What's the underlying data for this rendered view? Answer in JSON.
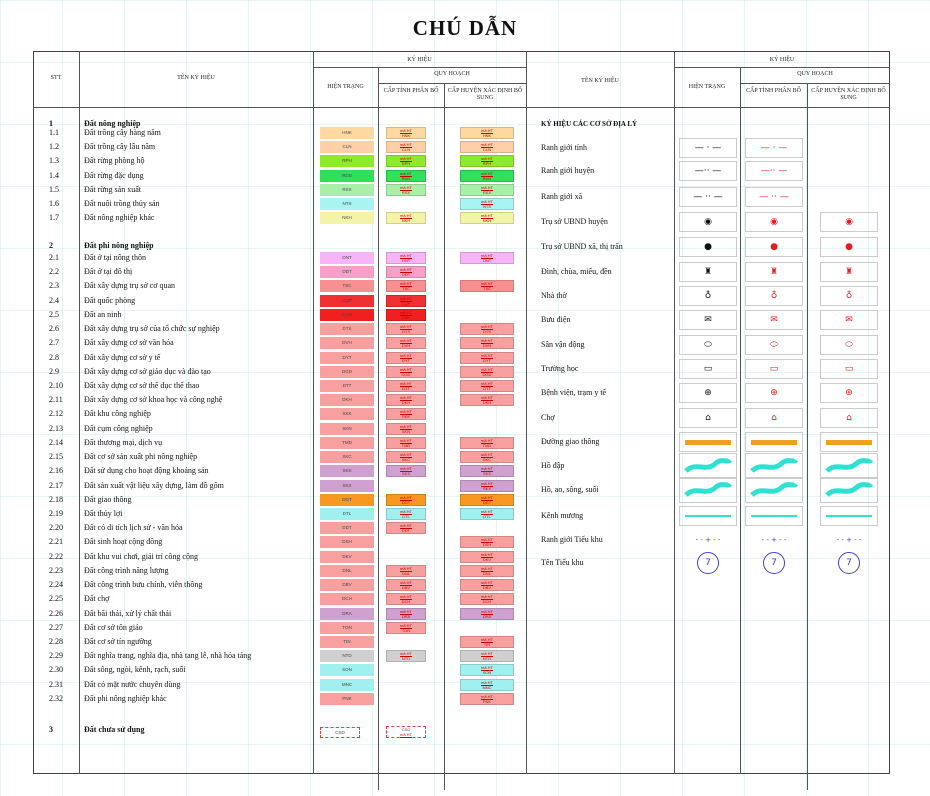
{
  "title": "CHÚ DẪN",
  "header": {
    "stt": "STT",
    "ten_ky_hieu": "TÊN KÝ HIỆU",
    "ky_hieu": "KÝ HIỆU",
    "hien_trang": "HIỆN TRẠNG",
    "quy_hoach": "QUY HOẠCH",
    "cap_tinh": "CẤP TỈNH PHÂN BỔ",
    "cap_huyen": "CẤP HUYỆN XÁC ĐỊNH BỔ SUNG"
  },
  "groups": [
    {
      "stt": "1",
      "name": "Đất nông nghiệp"
    },
    {
      "stt": "2",
      "name": "Đất phi nông nghiệp"
    },
    {
      "stt": "3",
      "name": "Đất chưa sử dụng"
    }
  ],
  "rows": [
    {
      "stt": "1.1",
      "name": "Đất trồng cây hàng năm",
      "code": "HNK",
      "color": "#ffd9a0",
      "tinh": true,
      "huyen": true
    },
    {
      "stt": "1.2",
      "name": "Đất trồng cây lâu năm",
      "code": "CLN",
      "color": "#ffd0a8",
      "tinh": true,
      "huyen": true
    },
    {
      "stt": "1.3",
      "name": "Đất rừng phòng hộ",
      "code": "RPH",
      "color": "#8eea2c",
      "tinh": true,
      "huyen": true
    },
    {
      "stt": "1.4",
      "name": "Đất rừng đặc dụng",
      "code": "RDD",
      "color": "#2ee05a",
      "tinh": true,
      "huyen": true
    },
    {
      "stt": "1.5",
      "name": "Đất rừng sản xuất",
      "code": "RSX",
      "color": "#a8f0a8",
      "tinh": true,
      "huyen": true
    },
    {
      "stt": "1.6",
      "name": "Đất nuôi trồng thủy sản",
      "code": "NTS",
      "color": "#a8f4f0",
      "tinh": false,
      "huyen": true
    },
    {
      "stt": "1.7",
      "name": "Đất nông nghiệp khác",
      "code": "NKH",
      "color": "#f4f4a8",
      "tinh": true,
      "huyen": true
    },
    {
      "stt": "2.1",
      "name": "Đất ở tại nông thôn",
      "code": "ONT",
      "color": "#f8b4f8",
      "tinh": true,
      "huyen": true
    },
    {
      "stt": "2.2",
      "name": "Đất ở tại đô thị",
      "code": "ODT",
      "color": "#f8a0c8",
      "tinh": true,
      "huyen": false
    },
    {
      "stt": "2.3",
      "name": "Đất xây dựng trụ sở cơ quan",
      "code": "TSC",
      "color": "#f89090",
      "tinh": true,
      "huyen": true
    },
    {
      "stt": "2.4",
      "name": "Đất quốc phòng",
      "code": "CQP",
      "color": "#f03030",
      "tinh": true,
      "huyen": false
    },
    {
      "stt": "2.5",
      "name": "Đất an ninh",
      "code": "CAN",
      "color": "#f02020",
      "tinh": true,
      "huyen": false
    },
    {
      "stt": "2.6",
      "name": "Đất xây dựng trụ sở của tổ chức sự nghiệp",
      "code": "DTS",
      "color": "#f8a0a0",
      "tinh": true,
      "huyen": true
    },
    {
      "stt": "2.7",
      "name": "Đất xây dựng cơ sở văn hóa",
      "code": "DVH",
      "color": "#f8a0a0",
      "tinh": true,
      "huyen": true
    },
    {
      "stt": "2.8",
      "name": "Đất xây dựng cơ sở y tế",
      "code": "DYT",
      "color": "#f8a0a0",
      "tinh": true,
      "huyen": true
    },
    {
      "stt": "2.9",
      "name": "Đất xây dựng cơ sở giáo dục và đào tạo",
      "code": "DGD",
      "color": "#f8a0a0",
      "tinh": true,
      "huyen": true
    },
    {
      "stt": "2.10",
      "name": "Đất xây dựng cơ sở thể dục thể thao",
      "code": "DTT",
      "color": "#f8a0a0",
      "tinh": true,
      "huyen": true
    },
    {
      "stt": "2.11",
      "name": "Đất xây dựng cơ sở khoa học và công nghệ",
      "code": "DKH",
      "color": "#f8a0a0",
      "tinh": true,
      "huyen": true
    },
    {
      "stt": "2.12",
      "name": "Đất khu công nghiệp",
      "code": "SKK",
      "color": "#f8a0a0",
      "tinh": true,
      "huyen": false
    },
    {
      "stt": "2.13",
      "name": "Đất cụm công nghiệp",
      "code": "SKN",
      "color": "#f8a0a0",
      "tinh": true,
      "huyen": false
    },
    {
      "stt": "2.14",
      "name": "Đất thương mại, dịch vụ",
      "code": "TMD",
      "color": "#f8a0a0",
      "tinh": true,
      "huyen": true
    },
    {
      "stt": "2.15",
      "name": "Đất cơ sở sản xuất phi nông nghiệp",
      "code": "SKC",
      "color": "#f8a0a0",
      "tinh": true,
      "huyen": true
    },
    {
      "stt": "2.16",
      "name": "Đất sử dụng cho hoạt động khoáng sản",
      "code": "SKS",
      "color": "#d0a0d0",
      "tinh": true,
      "huyen": true
    },
    {
      "stt": "2.17",
      "name": "Đất sản xuất vật liệu xây dựng, làm đồ gốm",
      "code": "SKX",
      "color": "#d0a0d0",
      "tinh": false,
      "huyen": true
    },
    {
      "stt": "2.18",
      "name": "Đất giao thông",
      "code": "DGT",
      "color": "#f89820",
      "tinh": true,
      "huyen": true
    },
    {
      "stt": "2.19",
      "name": "Đất thủy lợi",
      "code": "DTL",
      "color": "#a0f0f0",
      "tinh": true,
      "huyen": true
    },
    {
      "stt": "2.20",
      "name": "Đất có di tích lịch sử - văn hóa",
      "code": "DDT",
      "color": "#f8a0a0",
      "tinh": true,
      "huyen": false
    },
    {
      "stt": "2.21",
      "name": "Đất sinh hoạt cộng đồng",
      "code": "DSH",
      "color": "#f8a0a0",
      "tinh": false,
      "huyen": true
    },
    {
      "stt": "2.22",
      "name": "Đất khu vui chơi, giải trí công cộng",
      "code": "DKV",
      "color": "#f8a0a0",
      "tinh": false,
      "huyen": true
    },
    {
      "stt": "2.23",
      "name": "Đất công trình năng lượng",
      "code": "DNL",
      "color": "#f8a0a0",
      "tinh": true,
      "huyen": true
    },
    {
      "stt": "2.24",
      "name": "Đất công trình bưu chính, viễn thông",
      "code": "DBV",
      "color": "#f8a0a0",
      "tinh": true,
      "huyen": true
    },
    {
      "stt": "2.25",
      "name": "Đất chợ",
      "code": "DCH",
      "color": "#f8a0a0",
      "tinh": true,
      "huyen": true
    },
    {
      "stt": "2.26",
      "name": "Đất bãi thải, xử lý chất thải",
      "code": "DRA",
      "color": "#d0a0d0",
      "tinh": true,
      "huyen": true
    },
    {
      "stt": "2.27",
      "name": "Đất cơ sở tôn giáo",
      "code": "TON",
      "color": "#f8a0a0",
      "tinh": true,
      "huyen": false
    },
    {
      "stt": "2.28",
      "name": "Đất cơ sở tín ngưỡng",
      "code": "TIN",
      "color": "#f8a0a0",
      "tinh": false,
      "huyen": true
    },
    {
      "stt": "2.29",
      "name": "Đất nghĩa trang, nghĩa địa, nhà tang lễ, nhà hỏa táng",
      "code": "NTD",
      "color": "#d0d0d0",
      "tinh": true,
      "huyen": true
    },
    {
      "stt": "2.30",
      "name": "Đất sông, ngòi, kênh, rạch, suối",
      "code": "SON",
      "color": "#a0f0f0",
      "tinh": false,
      "huyen": true
    },
    {
      "stt": "2.31",
      "name": "Đất có mặt nước chuyên dùng",
      "code": "MNC",
      "color": "#a0f0f0",
      "tinh": false,
      "huyen": true
    },
    {
      "stt": "2.32",
      "name": "Đất phi nông nghiệp khác",
      "code": "PNK",
      "color": "#f8a0a0",
      "tinh": false,
      "huyen": true
    }
  ],
  "unused": {
    "code": "CSD",
    "sub": "mã HT"
  },
  "swatch_label": "mã HT",
  "symbols_header": "KÝ HIỆU CÁC CƠ SỞ ĐỊA LÝ",
  "symbols": [
    {
      "name": "Ranh giới tỉnh",
      "icon": "province-boundary-icon",
      "glyph": "— · —",
      "huyen": false
    },
    {
      "name": "Ranh giới huyện",
      "icon": "district-boundary-icon",
      "glyph": "—·· —",
      "huyen": false
    },
    {
      "name": "Ranh giới xã",
      "icon": "commune-boundary-icon",
      "glyph": "— ·· —",
      "huyen": false
    },
    {
      "name": "Trụ sở UBND huyện",
      "icon": "district-office-icon",
      "glyph": "◉",
      "huyen": true
    },
    {
      "name": "Trụ sở UBND xã, thị trấn",
      "icon": "commune-office-icon",
      "glyph": "●",
      "huyen": true
    },
    {
      "name": "Đình, chùa, miếu, đền",
      "icon": "temple-icon",
      "glyph": "♜",
      "huyen": true
    },
    {
      "name": "Nhà thờ",
      "icon": "church-icon",
      "glyph": "♁",
      "huyen": true
    },
    {
      "name": "Bưu điện",
      "icon": "post-office-icon",
      "glyph": "✉",
      "huyen": true
    },
    {
      "name": "Sân vận động",
      "icon": "stadium-icon",
      "glyph": "⬭",
      "huyen": true
    },
    {
      "name": "Trường học",
      "icon": "school-icon",
      "glyph": "▭",
      "huyen": true
    },
    {
      "name": "Bệnh viện, trạm y tế",
      "icon": "hospital-icon",
      "glyph": "⊕",
      "huyen": true
    },
    {
      "name": "Chợ",
      "icon": "market-icon",
      "glyph": "⌂",
      "huyen": true
    },
    {
      "name": "Đường giao thông",
      "icon": "road-icon",
      "glyph": "",
      "huyen": true
    },
    {
      "name": "Hồ đập",
      "icon": "dam-icon",
      "glyph": "",
      "huyen": true
    },
    {
      "name": "Hồ, ao, sông, suối",
      "icon": "lake-river-icon",
      "glyph": "",
      "huyen": true
    },
    {
      "name": "Kênh mương",
      "icon": "canal-icon",
      "glyph": "",
      "huyen": true
    },
    {
      "name": "Ranh giới Tiểu khu",
      "icon": "subzone-boundary-icon",
      "glyph": "- - + - -",
      "huyen": true
    },
    {
      "name": "Tên Tiểu khu",
      "icon": "subzone-name-icon",
      "glyph": "7",
      "huyen": true
    }
  ],
  "colors": {
    "red": "#e02020",
    "black": "#111111",
    "road": "#f0a020",
    "water": "#30e0d0",
    "blue": "#4040e0"
  }
}
